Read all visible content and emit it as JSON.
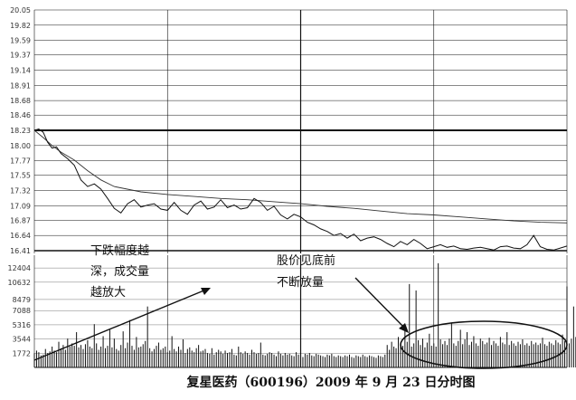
{
  "chart_data": {
    "type": "line",
    "title": "复星医药（600196）2009 年 9 月 23 日分时图",
    "price_panel": {
      "ylim": [
        16.41,
        20.05
      ],
      "ytick_labels": [
        "20.05",
        "19.82",
        "19.59",
        "19.37",
        "19.14",
        "18.91",
        "18.68",
        "18.46",
        "18.23",
        "18.00",
        "17.77",
        "17.55",
        "17.32",
        "17.09",
        "16.87",
        "16.64",
        "16.41"
      ],
      "prev_close": 18.23,
      "series": [
        {
          "id": "price",
          "x": [
            0,
            2,
            4,
            6,
            8,
            10,
            12,
            15,
            18,
            21,
            24,
            27,
            30,
            33,
            36,
            39,
            42,
            45,
            48,
            51,
            54,
            57,
            60,
            63,
            66,
            69,
            72,
            75,
            78,
            81,
            84,
            87,
            90,
            93,
            96,
            99,
            102,
            105,
            108,
            111,
            114,
            117,
            120,
            123,
            126,
            129,
            132,
            135,
            138,
            141,
            144,
            147,
            150,
            153,
            156,
            159,
            162,
            165,
            168,
            171,
            174,
            177,
            180,
            183,
            186,
            189,
            192,
            195,
            198,
            201,
            204,
            207,
            210,
            213,
            216,
            219,
            222,
            225,
            228,
            231,
            234,
            237,
            240
          ],
          "values": [
            18.23,
            18.25,
            18.2,
            18.05,
            17.96,
            17.98,
            17.88,
            17.8,
            17.7,
            17.48,
            17.38,
            17.42,
            17.34,
            17.2,
            17.05,
            16.98,
            17.12,
            17.18,
            17.07,
            17.1,
            17.12,
            17.04,
            17.02,
            17.14,
            17.02,
            16.96,
            17.1,
            17.16,
            17.04,
            17.07,
            17.18,
            17.06,
            17.1,
            17.04,
            17.06,
            17.2,
            17.14,
            17.02,
            17.08,
            16.95,
            16.89,
            16.96,
            16.92,
            16.84,
            16.8,
            16.74,
            16.7,
            16.64,
            16.67,
            16.6,
            16.66,
            16.56,
            16.6,
            16.62,
            16.58,
            16.52,
            16.47,
            16.55,
            16.5,
            16.58,
            16.52,
            16.44,
            16.47,
            16.5,
            16.46,
            16.48,
            16.44,
            16.43,
            16.45,
            16.46,
            16.44,
            16.42,
            16.47,
            16.48,
            16.45,
            16.44,
            16.5,
            16.64,
            16.47,
            16.43,
            16.42,
            16.45,
            16.48
          ]
        },
        {
          "id": "average",
          "x": [
            0,
            4,
            8,
            12,
            18,
            24,
            30,
            36,
            48,
            60,
            72,
            84,
            96,
            108,
            120,
            132,
            144,
            156,
            168,
            180,
            192,
            204,
            216,
            228,
            240
          ],
          "values": [
            18.23,
            18.12,
            18.0,
            17.9,
            17.78,
            17.62,
            17.48,
            17.38,
            17.3,
            17.26,
            17.23,
            17.2,
            17.18,
            17.15,
            17.12,
            17.08,
            17.05,
            17.01,
            16.97,
            16.95,
            16.92,
            16.89,
            16.86,
            16.84,
            16.83
          ]
        }
      ]
    },
    "volume_panel": {
      "ylim": [
        0,
        14000
      ],
      "ytick_labels": [
        "12404",
        "10632",
        "8479",
        "7088",
        "5316",
        "3544",
        "1772"
      ],
      "values": [
        1772,
        2100,
        1900,
        1500,
        1600,
        2300,
        1800,
        2000,
        2600,
        2100,
        1900,
        3200,
        2400,
        2800,
        2200,
        3600,
        2600,
        3000,
        2700,
        4400,
        2500,
        2800,
        2300,
        2900,
        3400,
        2600,
        2400,
        5400,
        3000,
        2200,
        2600,
        3900,
        2400,
        2700,
        4700,
        2500,
        3600,
        2300,
        2100,
        2800,
        4500,
        2400,
        3100,
        5900,
        2700,
        2200,
        3800,
        2500,
        2600,
        2900,
        3300,
        7600,
        2400,
        2000,
        2300,
        2700,
        3100,
        2200,
        2400,
        2600,
        1900,
        2100,
        3900,
        2300,
        2000,
        2600,
        2200,
        3500,
        1800,
        2300,
        2500,
        2100,
        1900,
        2400,
        2800,
        2000,
        2100,
        2300,
        1800,
        1700,
        2400,
        1600,
        1900,
        2200,
        2000,
        1700,
        2100,
        1800,
        1900,
        2300,
        1600,
        1500,
        2600,
        1900,
        1700,
        2000,
        1800,
        1600,
        2200,
        1900,
        1700,
        1800,
        3100,
        1600,
        1500,
        1700,
        1900,
        1800,
        1600,
        1400,
        2000,
        1700,
        1500,
        1800,
        1600,
        1700,
        1500,
        1400,
        1900,
        1600,
        1500,
        1300,
        1700,
        1600,
        1800,
        1500,
        1400,
        1700,
        1600,
        1500,
        1400,
        1300,
        1600,
        1500,
        1700,
        1400,
        1300,
        1500,
        1400,
        1300,
        1500,
        1400,
        1600,
        1300,
        1200,
        1500,
        1400,
        1300,
        1600,
        1400,
        1300,
        1500,
        1400,
        1300,
        1200,
        1500,
        1400,
        1300,
        1600,
        2800,
        2200,
        3200,
        2600,
        2400,
        3800,
        2900,
        2700,
        4800,
        3200,
        10400,
        2600,
        3000,
        9600,
        3400,
        2800,
        3600,
        2500,
        3100,
        4200,
        2700,
        3000,
        2600,
        13000,
        3500,
        2900,
        3300,
        2800,
        3600,
        5600,
        3000,
        2700,
        3300,
        4700,
        2900,
        3500,
        4400,
        2800,
        3200,
        3900,
        3000,
        2700,
        3600,
        3300,
        2900,
        3100,
        3700,
        2800,
        3300,
        3000,
        2700,
        3800,
        3100,
        2900,
        4400,
        2800,
        3300,
        3000,
        2700,
        3200,
        2900,
        3500,
        2800,
        3000,
        2700,
        3300,
        2900,
        3100,
        2800,
        3000,
        3700,
        2900,
        2700,
        3200,
        3000,
        2800,
        3400,
        3100,
        2900,
        4100,
        3300,
        10100,
        3000,
        3600,
        7600,
        3800,
        4600
      ]
    },
    "annotations": [
      {
        "id": "left",
        "lines": [
          "下跌幅度越",
          "深，成交量",
          "越放大"
        ]
      },
      {
        "id": "right",
        "lines": [
          "股价见底前",
          "不断放量"
        ]
      }
    ],
    "caption": "复星医药（600196）2009 年 9 月 23 日分时图"
  }
}
